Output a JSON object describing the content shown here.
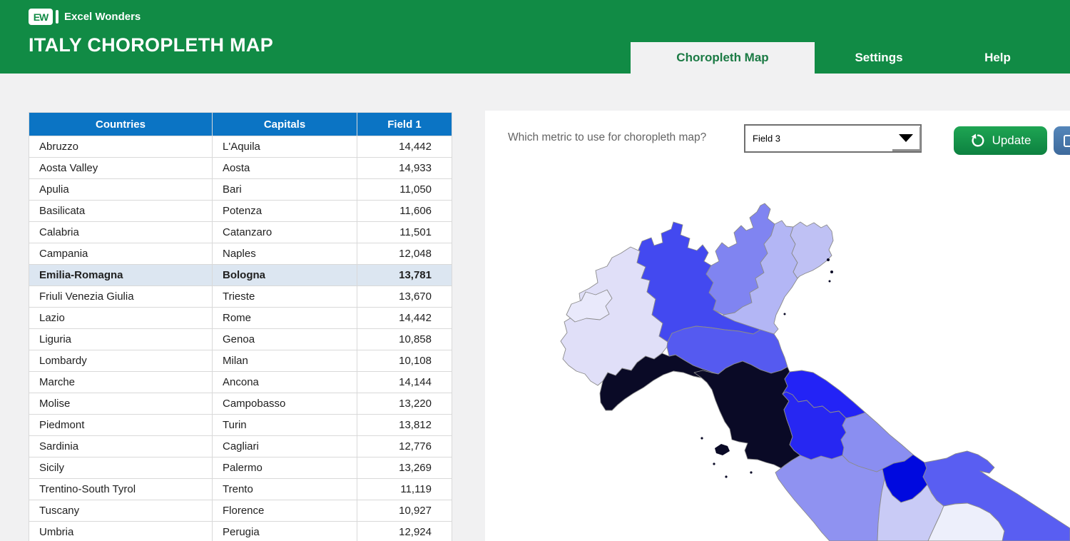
{
  "brand": {
    "logo": "EW",
    "name": "Excel Wonders"
  },
  "title": "ITALY CHOROPLETH MAP",
  "tabs": {
    "map": "Choropleth Map",
    "settings": "Settings",
    "help": "Help"
  },
  "table": {
    "columns": [
      "Countries",
      "Capitals",
      "Field 1"
    ],
    "rows": [
      {
        "country": "Abruzzo",
        "capital": "L'Aquila",
        "value": "14,442",
        "selected": false
      },
      {
        "country": "Aosta Valley",
        "capital": "Aosta",
        "value": "14,933",
        "selected": false
      },
      {
        "country": "Apulia",
        "capital": "Bari",
        "value": "11,050",
        "selected": false
      },
      {
        "country": "Basilicata",
        "capital": "Potenza",
        "value": "11,606",
        "selected": false
      },
      {
        "country": "Calabria",
        "capital": "Catanzaro",
        "value": "11,501",
        "selected": false
      },
      {
        "country": "Campania",
        "capital": "Naples",
        "value": "12,048",
        "selected": false
      },
      {
        "country": "Emilia-Romagna",
        "capital": "Bologna",
        "value": "13,781",
        "selected": true
      },
      {
        "country": "Friuli Venezia Giulia",
        "capital": "Trieste",
        "value": "13,670",
        "selected": false
      },
      {
        "country": "Lazio",
        "capital": "Rome",
        "value": "14,442",
        "selected": false
      },
      {
        "country": "Liguria",
        "capital": "Genoa",
        "value": "10,858",
        "selected": false
      },
      {
        "country": "Lombardy",
        "capital": "Milan",
        "value": "10,108",
        "selected": false
      },
      {
        "country": "Marche",
        "capital": "Ancona",
        "value": "14,144",
        "selected": false
      },
      {
        "country": "Molise",
        "capital": "Campobasso",
        "value": "13,220",
        "selected": false
      },
      {
        "country": "Piedmont",
        "capital": "Turin",
        "value": "13,812",
        "selected": false
      },
      {
        "country": "Sardinia",
        "capital": "Cagliari",
        "value": "12,776",
        "selected": false
      },
      {
        "country": "Sicily",
        "capital": "Palermo",
        "value": "13,269",
        "selected": false
      },
      {
        "country": "Trentino-South Tyrol",
        "capital": "Trento",
        "value": "11,119",
        "selected": false
      },
      {
        "country": "Tuscany",
        "capital": "Florence",
        "value": "10,927",
        "selected": false
      },
      {
        "country": "Umbria",
        "capital": "Perugia",
        "value": "12,924",
        "selected": false
      }
    ]
  },
  "controls": {
    "metric_question": "Which metric to use for choropleth map?",
    "metric_selected": "Field 3",
    "update_button": "Update"
  },
  "map": {
    "type": "choropleth",
    "metric": "Field 3",
    "region_fills": {
      "piedmont": "#e0dff8",
      "aosta-valley": "#e9e9fb",
      "liguria": "#0a0a26",
      "lombardy": "#4349f0",
      "trentino-south-tyrol": "#8084f1",
      "veneto": "#b3b6f5",
      "friuli-venezia-giulia": "#bfc1f4",
      "emilia-romagna": "#555af0",
      "tuscany": "#0a0a26",
      "marche": "#2323f6",
      "umbria": "#2727f2",
      "lazio": "#8f92f1",
      "abruzzo": "#8a8ef1",
      "molise": "#0009df",
      "apulia": "#595ef2",
      "campania": "#c9cbf6",
      "basilicata": "#edeffb",
      "islands": "#0a0a26"
    }
  },
  "colors": {
    "header_green": "#118b45",
    "tab_active_text": "#1b7a44",
    "table_header_blue": "#0b74c4",
    "selected_row_bg": "#dce6f1",
    "update_green": "#17a24e",
    "export_blue": "#4a7aac",
    "page_background": "#f1f1f2"
  }
}
